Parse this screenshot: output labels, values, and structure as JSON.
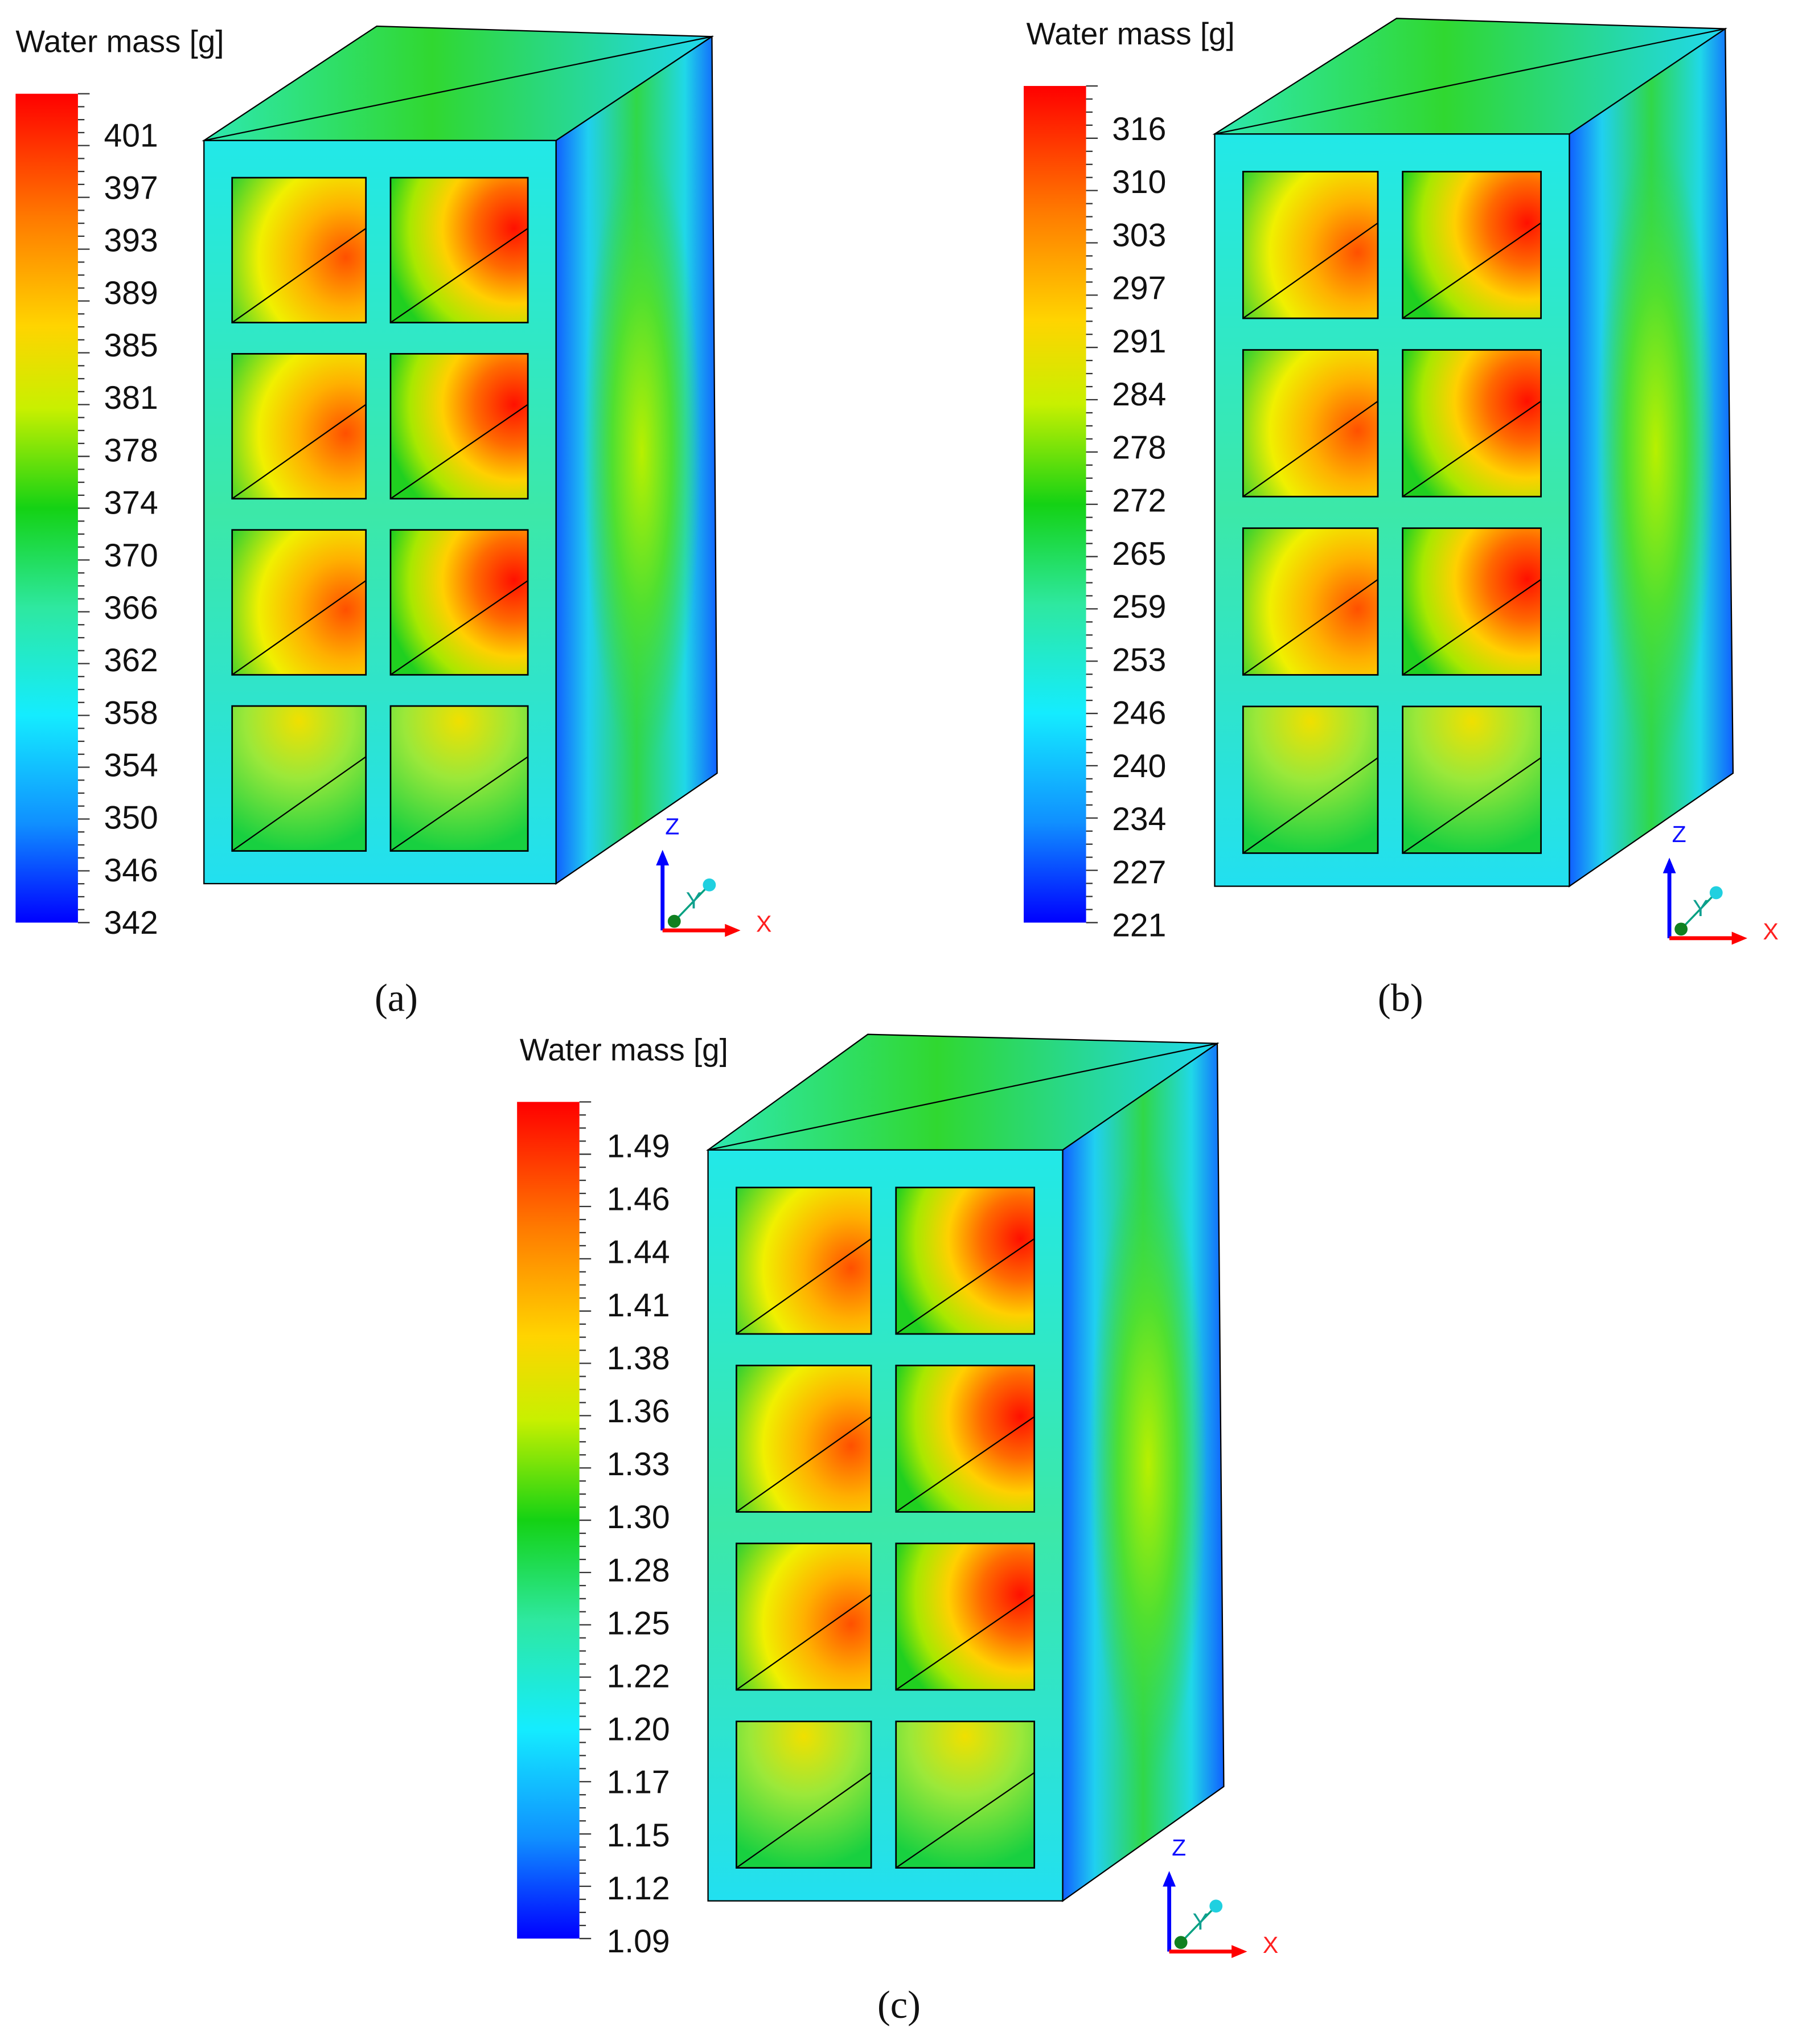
{
  "panels": [
    {
      "label": "(a)",
      "colorbar_title": "Water mass [g]",
      "colorbar_ticks": [
        "401",
        "397",
        "393",
        "389",
        "385",
        "381",
        "378",
        "374",
        "370",
        "366",
        "362",
        "358",
        "354",
        "350",
        "346",
        "342"
      ],
      "axes": {
        "z": "Z",
        "y": "Y",
        "x": "X"
      }
    },
    {
      "label": "(b)",
      "colorbar_title": "Water mass [g]",
      "colorbar_ticks": [
        "316",
        "310",
        "303",
        "297",
        "291",
        "284",
        "278",
        "272",
        "265",
        "259",
        "253",
        "246",
        "240",
        "234",
        "227",
        "221"
      ],
      "axes": {
        "z": "Z",
        "y": "Y",
        "x": "X"
      }
    },
    {
      "label": "(c)",
      "colorbar_title": "Water mass [g]",
      "colorbar_ticks": [
        "1.49",
        "1.46",
        "1.44",
        "1.41",
        "1.38",
        "1.36",
        "1.33",
        "1.30",
        "1.28",
        "1.25",
        "1.22",
        "1.20",
        "1.17",
        "1.15",
        "1.12",
        "1.09"
      ],
      "axes": {
        "z": "Z",
        "y": "Y",
        "x": "X"
      }
    }
  ]
}
